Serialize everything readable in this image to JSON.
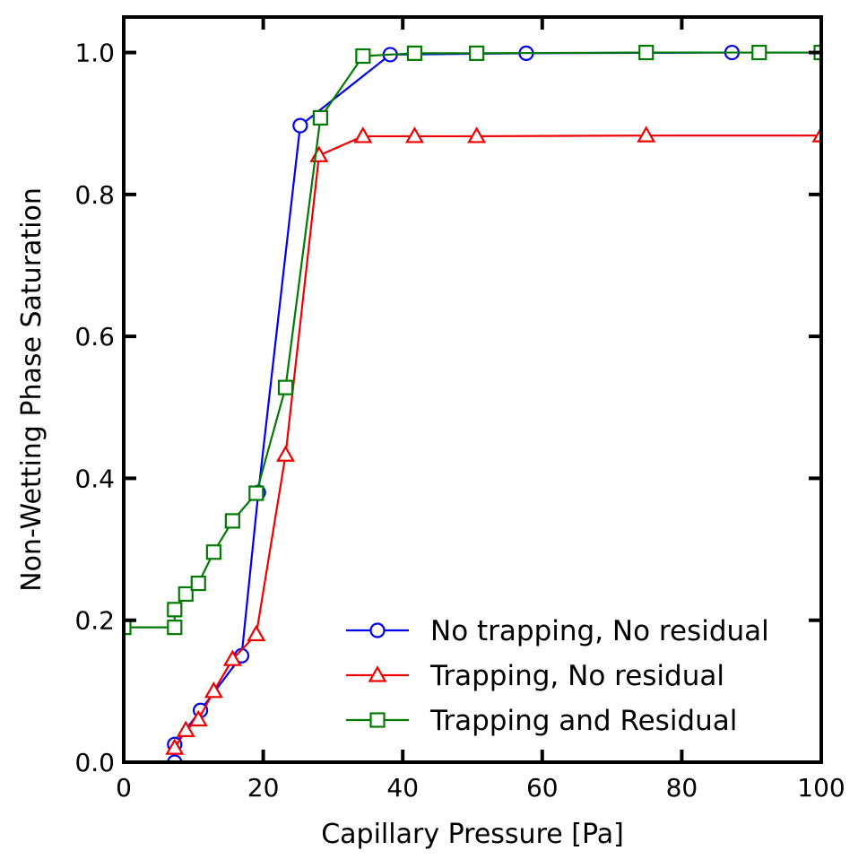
{
  "chart_data": {
    "type": "line",
    "title": "",
    "xlabel": "Capillary Pressure [Pa]",
    "ylabel": "Non-Wetting Phase Saturation",
    "xlim": [
      0,
      100
    ],
    "ylim": [
      0,
      1.05
    ],
    "x_ticks": [
      0,
      20,
      40,
      60,
      80,
      100
    ],
    "x_tick_labels": [
      "0",
      "20",
      "40",
      "60",
      "80",
      "100"
    ],
    "y_ticks": [
      0,
      0.2,
      0.4,
      0.6,
      0.8,
      1.0
    ],
    "y_tick_labels": [
      "0.0",
      "0.2",
      "0.4",
      "0.6",
      "0.8",
      "1.0"
    ],
    "grid": false,
    "legend_position": "bottom-right",
    "series": [
      {
        "name": "No trapping, No residual",
        "color": "#0000ee",
        "marker": "circle",
        "points": [
          [
            7.3,
            0.0
          ],
          [
            7.3,
            0.025
          ],
          [
            11.0,
            0.073
          ],
          [
            16.9,
            0.15
          ],
          [
            19.3,
            0.38
          ],
          [
            25.3,
            0.897
          ],
          [
            38.2,
            0.997
          ],
          [
            57.7,
            0.999
          ],
          [
            87.2,
            1.0
          ],
          [
            100,
            1.0
          ]
        ]
      },
      {
        "name": "Trapping, No residual",
        "color": "#ee0000",
        "marker": "triangle",
        "points": [
          [
            7.3,
            0.02
          ],
          [
            8.9,
            0.045
          ],
          [
            10.7,
            0.06
          ],
          [
            12.9,
            0.1
          ],
          [
            15.6,
            0.145
          ],
          [
            19.0,
            0.18
          ],
          [
            23.2,
            0.433
          ],
          [
            28.0,
            0.855
          ],
          [
            34.3,
            0.882
          ],
          [
            41.7,
            0.882
          ],
          [
            50.6,
            0.882
          ],
          [
            74.9,
            0.883
          ],
          [
            100,
            0.883
          ]
        ]
      },
      {
        "name": "Trapping and Residual",
        "color": "#007a00",
        "marker": "square",
        "points": [
          [
            0,
            0.19
          ],
          [
            7.3,
            0.19
          ],
          [
            7.3,
            0.215
          ],
          [
            8.9,
            0.237
          ],
          [
            10.7,
            0.252
          ],
          [
            12.9,
            0.296
          ],
          [
            15.6,
            0.34
          ],
          [
            19.0,
            0.379
          ],
          [
            23.2,
            0.528
          ],
          [
            28.2,
            0.908
          ],
          [
            34.3,
            0.995
          ],
          [
            41.7,
            0.999
          ],
          [
            50.6,
            0.999
          ],
          [
            74.9,
            1.0
          ],
          [
            91.1,
            1.0
          ],
          [
            100,
            1.0
          ]
        ]
      }
    ]
  }
}
